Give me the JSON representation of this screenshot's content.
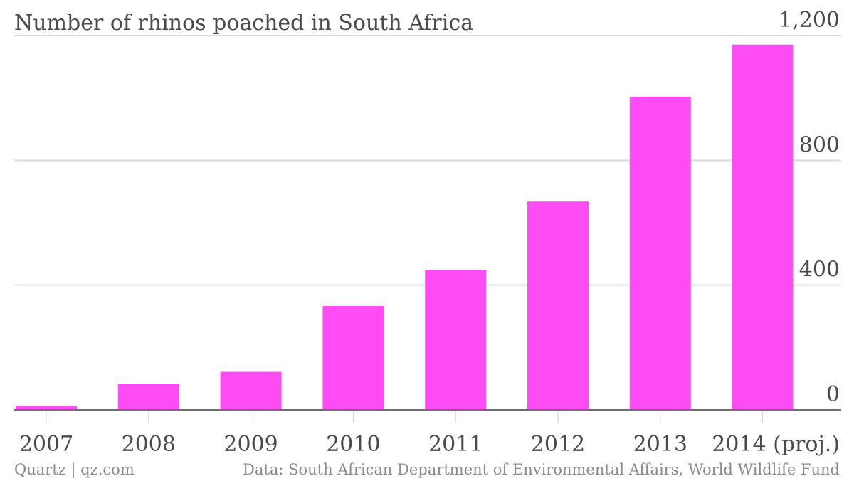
{
  "chart_data": {
    "type": "bar",
    "title": "Number of rhinos poached in South Africa",
    "categories": [
      "2007",
      "2008",
      "2009",
      "2010",
      "2011",
      "2012",
      "2013",
      "2014 (proj.)"
    ],
    "values": [
      13,
      83,
      122,
      333,
      448,
      668,
      1004,
      1171
    ],
    "ylim": [
      0,
      1200
    ],
    "yticks": [
      0,
      400,
      800,
      1200
    ],
    "ytick_labels": [
      "0",
      "400",
      "800",
      "1,200"
    ],
    "y_axis_side": "right",
    "grid": true,
    "bar_color": "#ff4cf4",
    "xlabel": "",
    "ylabel": ""
  },
  "footer": {
    "source_left": "Quartz | qz.com",
    "source_right": "Data: South African Department of Environmental Affairs, World Wildlife Fund"
  }
}
